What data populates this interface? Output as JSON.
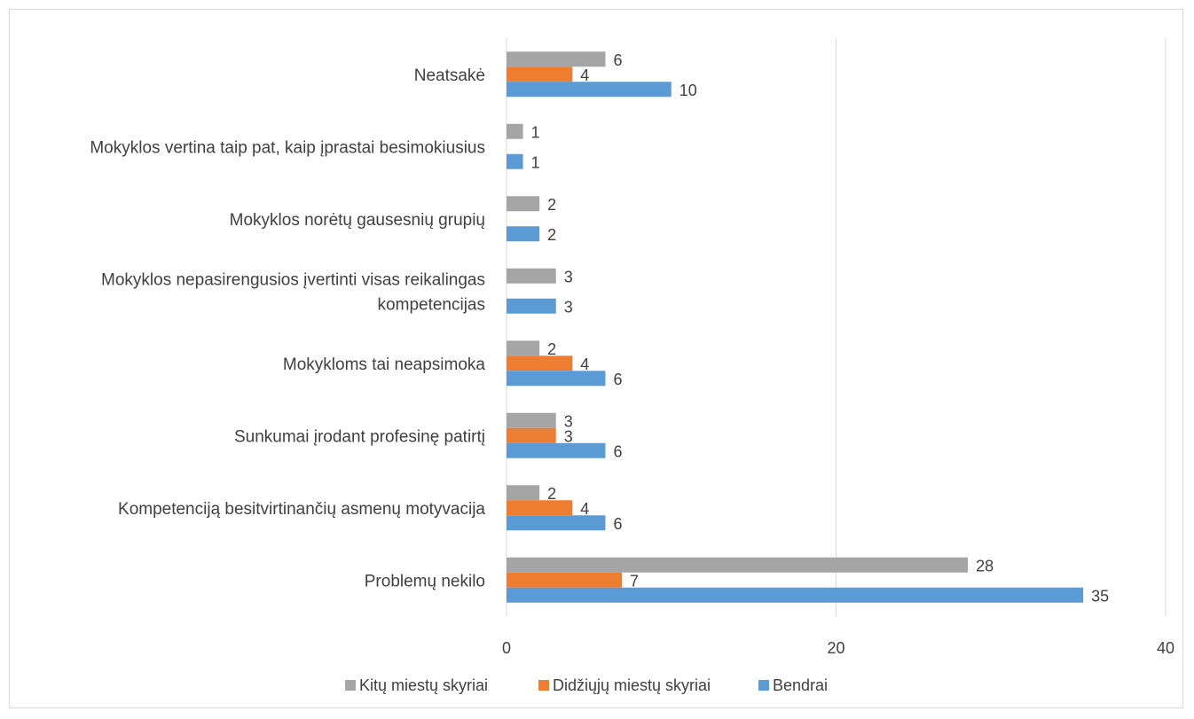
{
  "chart_data": {
    "type": "bar",
    "orientation": "horizontal",
    "title": "",
    "xlabel": "",
    "ylabel": "",
    "xlim": [
      0,
      40
    ],
    "xticks": [
      0,
      20,
      40
    ],
    "grid": true,
    "legend_position": "bottom",
    "categories": [
      [
        "Neatsakė"
      ],
      [
        "Mokyklos vertina taip pat, kaip įprastai besimokiusius"
      ],
      [
        "Mokyklos norėtų gausesnių grupių"
      ],
      [
        "Mokyklos nepasirengusios įvertinti visas reikalingas",
        "kompetencijas"
      ],
      [
        "Mokykloms tai neapsimoka"
      ],
      [
        "Sunkumai įrodant profesinę patirtį"
      ],
      [
        "Kompetenciją besitvirtinančių asmenų motyvacija"
      ],
      [
        "Problemų nekilo"
      ]
    ],
    "series": [
      {
        "name": "Kitų miestų skyriai",
        "color": "#a5a5a5",
        "values": [
          6,
          1,
          2,
          3,
          2,
          3,
          2,
          28
        ]
      },
      {
        "name": "Didžiųjų miestų skyriai",
        "color": "#ed7d31",
        "values": [
          4,
          null,
          null,
          null,
          4,
          3,
          4,
          7
        ]
      },
      {
        "name": "Bendrai",
        "color": "#5b9bd5",
        "values": [
          10,
          1,
          2,
          3,
          6,
          6,
          6,
          35
        ]
      }
    ]
  }
}
